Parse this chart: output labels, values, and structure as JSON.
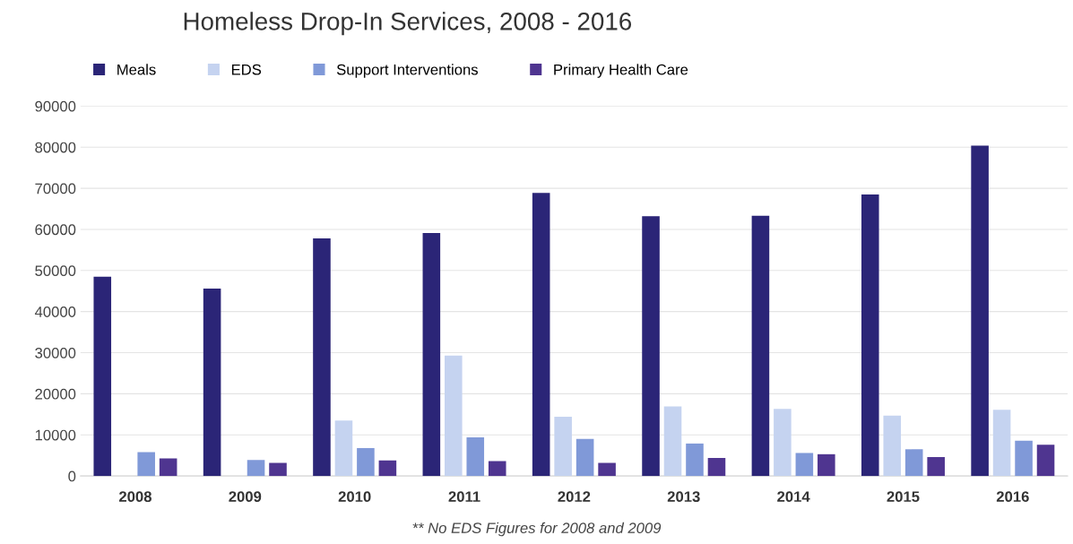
{
  "chart_data": {
    "type": "bar",
    "title": "Homeless Drop-In Services, 2008 - 2016",
    "categories": [
      "2008",
      "2009",
      "2010",
      "2011",
      "2012",
      "2013",
      "2014",
      "2015",
      "2016"
    ],
    "series": [
      {
        "name": "Meals",
        "color": "#2b2577",
        "values": [
          48500,
          45600,
          57800,
          59100,
          68900,
          63200,
          63300,
          68500,
          80400
        ]
      },
      {
        "name": "EDS",
        "color": "#c5d3f0",
        "values": [
          null,
          null,
          13500,
          29300,
          14400,
          16900,
          16300,
          14700,
          16100
        ]
      },
      {
        "name": "Support Interventions",
        "color": "#8099d8",
        "values": [
          5800,
          3900,
          6800,
          9400,
          9000,
          7900,
          5600,
          6500,
          8600
        ]
      },
      {
        "name": "Primary Health Care",
        "color": "#4f3590",
        "values": [
          4300,
          3200,
          3800,
          3600,
          3200,
          4400,
          5300,
          4600,
          7600
        ]
      }
    ],
    "ylim": [
      0,
      90000
    ],
    "yticks": [
      0,
      10000,
      20000,
      30000,
      40000,
      50000,
      60000,
      70000,
      80000,
      90000
    ],
    "grid": "y",
    "legend": "top",
    "annotations": [
      "** No EDS Figures for 2008 and 2009"
    ]
  }
}
